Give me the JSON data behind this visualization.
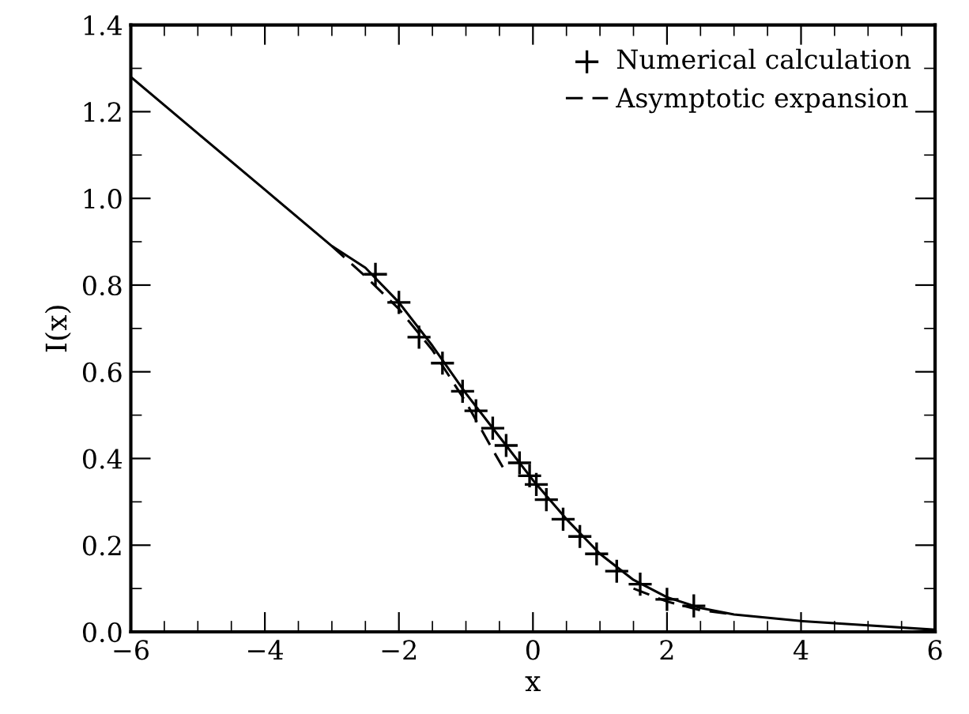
{
  "chart_data": {
    "type": "line",
    "xlabel": "x",
    "ylabel": "I(x)",
    "xlim": [
      -6,
      6
    ],
    "ylim": [
      0,
      1.4
    ],
    "xticks": [
      -6,
      -4,
      -2,
      0,
      2,
      4,
      6,
      {
        "value": -5.5,
        "label": null
      },
      {
        "value": -5,
        "label": null
      },
      {
        "value": -4.5,
        "label": null
      },
      {
        "value": -3.5,
        "label": null
      },
      {
        "value": -3,
        "label": null
      },
      {
        "value": -2.5,
        "label": null
      },
      {
        "value": -1.5,
        "label": null
      },
      {
        "value": -1,
        "label": null
      },
      {
        "value": -0.5,
        "label": null
      },
      {
        "value": 0.5,
        "label": null
      },
      {
        "value": 1,
        "label": null
      },
      {
        "value": 1.5,
        "label": null
      },
      {
        "value": 2.5,
        "label": null
      },
      {
        "value": 3,
        "label": null
      },
      {
        "value": 3.5,
        "label": null
      },
      {
        "value": 4.5,
        "label": null
      },
      {
        "value": 5,
        "label": null
      },
      {
        "value": 5.5,
        "label": null
      }
    ],
    "yticks": [
      {
        "value": 0,
        "label": "0.0"
      },
      0.2,
      0.4,
      0.6,
      0.8,
      {
        "value": 1,
        "label": "1.0"
      },
      1.2,
      1.4,
      {
        "value": 0.1,
        "label": null
      },
      {
        "value": 0.3,
        "label": null
      },
      {
        "value": 0.5,
        "label": null
      },
      {
        "value": 0.7,
        "label": null
      },
      {
        "value": 0.9,
        "label": null
      },
      {
        "value": 1.1,
        "label": null
      },
      {
        "value": 1.3,
        "label": null
      }
    ],
    "grid": false,
    "legend": "top right",
    "series": [
      {
        "type": "scatter",
        "name": "Numerical calculation",
        "color": "#000000",
        "marker": "cross",
        "x": [
          -2.35,
          -2.0,
          -1.7,
          -1.35,
          -1.05,
          -0.85,
          -0.6,
          -0.4,
          -0.2,
          -0.05,
          0.05,
          0.2,
          0.45,
          0.7,
          0.95,
          1.25,
          1.6,
          2.0,
          2.4
        ],
        "values": [
          0.825,
          0.76,
          0.68,
          0.62,
          0.555,
          0.51,
          0.47,
          0.43,
          0.39,
          0.36,
          0.34,
          0.305,
          0.26,
          0.22,
          0.18,
          0.14,
          0.11,
          0.075,
          0.06
        ]
      },
      {
        "color": "#000000",
        "line_style": "solid",
        "x": [
          -6,
          -5,
          -4,
          -3,
          -2.5,
          -2,
          -1.5,
          -1,
          -0.5,
          0,
          0.5,
          1,
          1.5,
          2,
          2.5,
          3,
          4,
          5,
          6
        ],
        "values": [
          1.28,
          1.15,
          1.02,
          0.89,
          0.84,
          0.76,
          0.66,
          0.55,
          0.45,
          0.35,
          0.26,
          0.18,
          0.12,
          0.08,
          0.055,
          0.04,
          0.025,
          0.015,
          0.005
        ]
      },
      {
        "type": "line",
        "name": "Asymptotic expansion",
        "color": "#000000",
        "line_style": "dashed",
        "x": [
          -3,
          -2.5,
          -2,
          -1.5,
          -1,
          -0.6,
          -0.45,
          0,
          1.5,
          2,
          2.5,
          3
        ],
        "values": [
          0.89,
          0.82,
          0.745,
          0.65,
          0.53,
          0.42,
          0.38,
          null,
          0.1,
          0.07,
          0.05,
          0.04
        ]
      }
    ]
  }
}
